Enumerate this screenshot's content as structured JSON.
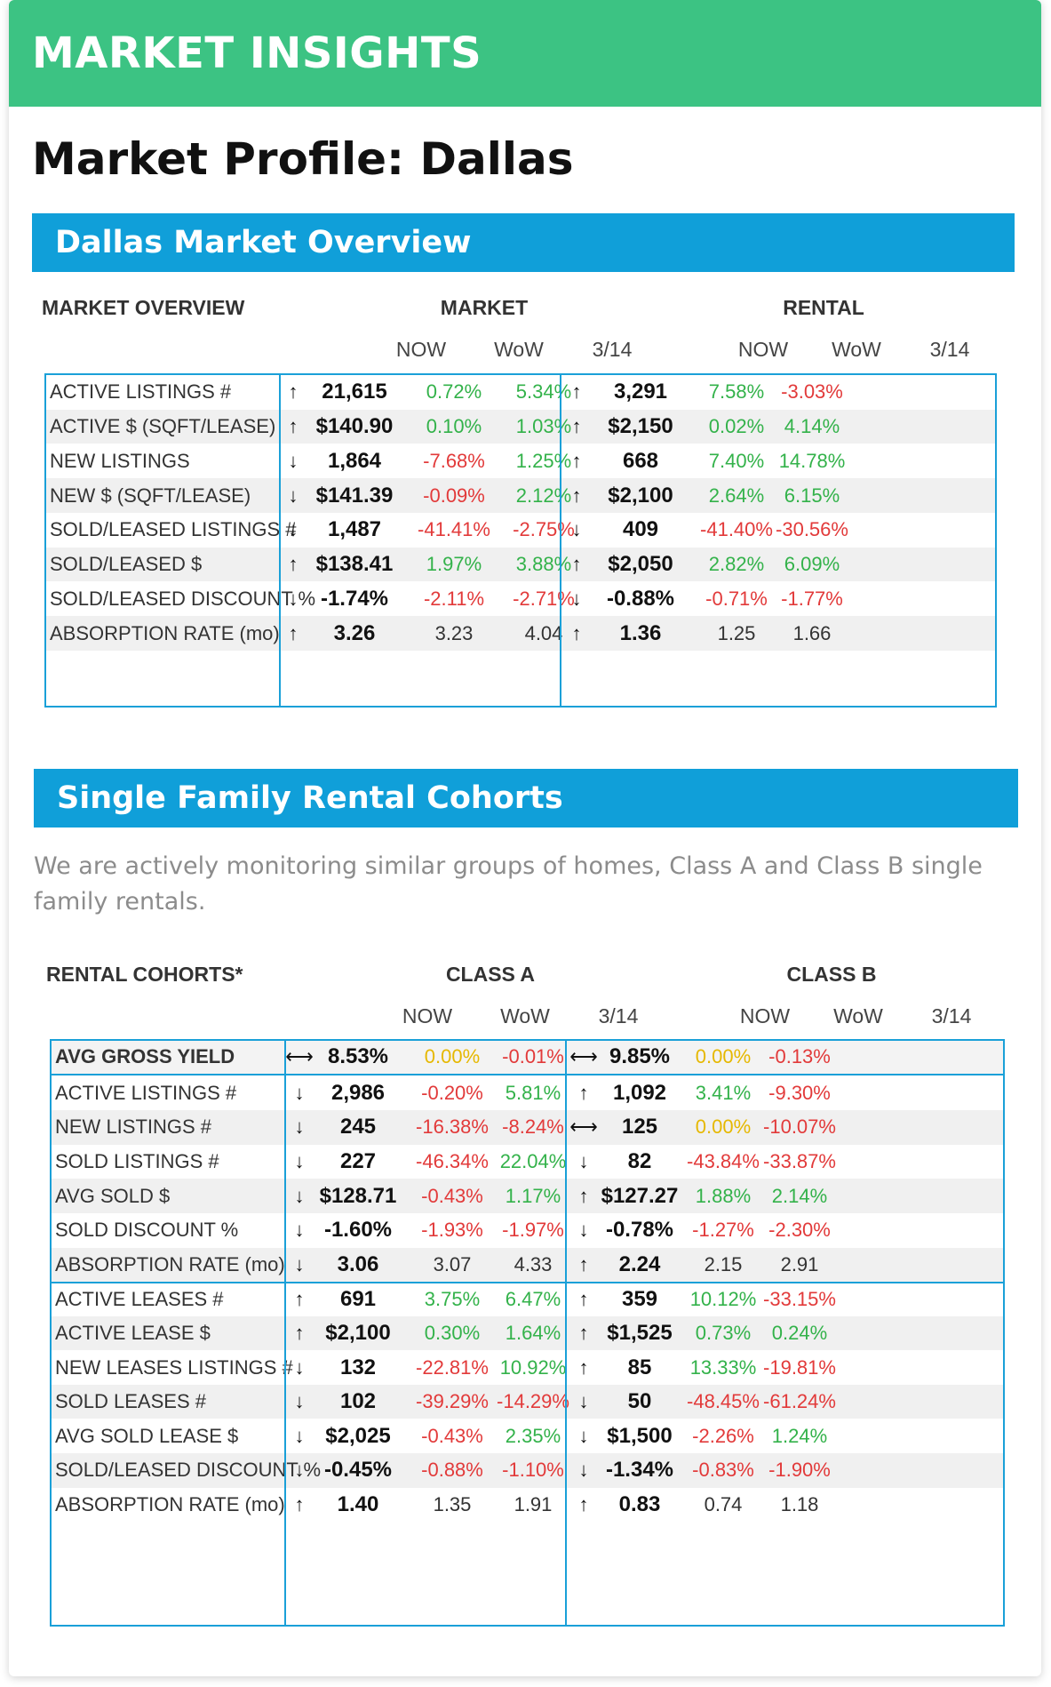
{
  "header": {
    "title": "MARKET INSIGHTS"
  },
  "page_title": "Market Profile: Dallas",
  "overview": {
    "banner": "Dallas Market Overview",
    "heading": "MARKET OVERVIEW",
    "group_a": "MARKET",
    "group_b": "RENTAL",
    "sub_now": "NOW",
    "sub_wow": "WoW",
    "sub_date": "3/14",
    "rows": [
      {
        "label": "ACTIVE LISTINGS #",
        "a_arrow": "↑",
        "a_now": "21,615",
        "a_wow": "0.72%",
        "a_d": "5.34%",
        "b_arrow": "↑",
        "b_now": "3,291",
        "b_wow": "7.58%",
        "b_d": "-3.03%"
      },
      {
        "label": "ACTIVE $ (SQFT/LEASE)",
        "a_arrow": "↑",
        "a_now": "$140.90",
        "a_wow": "0.10%",
        "a_d": "1.03%",
        "b_arrow": "↑",
        "b_now": "$2,150",
        "b_wow": "0.02%",
        "b_d": "4.14%"
      },
      {
        "label": "NEW LISTINGS",
        "a_arrow": "↓",
        "a_now": "1,864",
        "a_wow": "-7.68%",
        "a_d": "1.25%",
        "b_arrow": "↑",
        "b_now": "668",
        "b_wow": "7.40%",
        "b_d": "14.78%"
      },
      {
        "label": "NEW $ (SQFT/LEASE)",
        "a_arrow": "↓",
        "a_now": "$141.39",
        "a_wow": "-0.09%",
        "a_d": "2.12%",
        "b_arrow": "↑",
        "b_now": "$2,100",
        "b_wow": "2.64%",
        "b_d": "6.15%"
      },
      {
        "label": "SOLD/LEASED LISTINGS #",
        "a_arrow": "↓",
        "a_now": "1,487",
        "a_wow": "-41.41%",
        "a_d": "-2.75%",
        "b_arrow": "↓",
        "b_now": "409",
        "b_wow": "-41.40%",
        "b_d": "-30.56%"
      },
      {
        "label": "SOLD/LEASED $",
        "a_arrow": "↑",
        "a_now": "$138.41",
        "a_wow": "1.97%",
        "a_d": "3.88%",
        "b_arrow": "↑",
        "b_now": "$2,050",
        "b_wow": "2.82%",
        "b_d": "6.09%"
      },
      {
        "label": "SOLD/LEASED DISCOUNT %",
        "a_arrow": "↓",
        "a_now": "-1.74%",
        "a_wow": "-2.11%",
        "a_d": "-2.71%",
        "b_arrow": "↓",
        "b_now": "-0.88%",
        "b_wow": "-0.71%",
        "b_d": "-1.77%"
      },
      {
        "label": "ABSORPTION RATE (mo)",
        "a_arrow": "↑",
        "a_now": "3.26",
        "a_wow": "3.23",
        "a_d": "4.04",
        "b_arrow": "↑",
        "b_now": "1.36",
        "b_wow": "1.25",
        "b_d": "1.66"
      }
    ]
  },
  "cohorts": {
    "banner": "Single Family Rental Cohorts",
    "description": "We are actively monitoring similar groups of homes, Class A and Class B single family rentals.",
    "heading": "RENTAL COHORTS*",
    "group_a": "CLASS A",
    "group_b": "CLASS B",
    "sub_now": "NOW",
    "sub_wow": "WoW",
    "sub_date": "3/14",
    "rows": [
      {
        "label": "AVG GROSS YIELD",
        "a_arrow": "⟷",
        "a_now": "8.53%",
        "a_wow": "0.00%",
        "a_d": "-0.01%",
        "b_arrow": "⟷",
        "b_now": "9.85%",
        "b_wow": "0.00%",
        "b_d": "-0.13%"
      },
      {
        "label": "ACTIVE LISTINGS #",
        "a_arrow": "↓",
        "a_now": "2,986",
        "a_wow": "-0.20%",
        "a_d": "5.81%",
        "b_arrow": "↑",
        "b_now": "1,092",
        "b_wow": "3.41%",
        "b_d": "-9.30%"
      },
      {
        "label": "NEW LISTINGS #",
        "a_arrow": "↓",
        "a_now": "245",
        "a_wow": "-16.38%",
        "a_d": "-8.24%",
        "b_arrow": "⟷",
        "b_now": "125",
        "b_wow": "0.00%",
        "b_d": "-10.07%"
      },
      {
        "label": "SOLD LISTINGS #",
        "a_arrow": "↓",
        "a_now": "227",
        "a_wow": "-46.34%",
        "a_d": "22.04%",
        "b_arrow": "↓",
        "b_now": "82",
        "b_wow": "-43.84%",
        "b_d": "-33.87%"
      },
      {
        "label": "AVG SOLD $",
        "a_arrow": "↓",
        "a_now": "$128.71",
        "a_wow": "-0.43%",
        "a_d": "1.17%",
        "b_arrow": "↑",
        "b_now": "$127.27",
        "b_wow": "1.88%",
        "b_d": "2.14%"
      },
      {
        "label": "SOLD DISCOUNT %",
        "a_arrow": "↓",
        "a_now": "-1.60%",
        "a_wow": "-1.93%",
        "a_d": "-1.97%",
        "b_arrow": "↓",
        "b_now": "-0.78%",
        "b_wow": "-1.27%",
        "b_d": "-2.30%"
      },
      {
        "label": "ABSORPTION RATE (mo)",
        "a_arrow": "↓",
        "a_now": "3.06",
        "a_wow": "3.07",
        "a_d": "4.33",
        "b_arrow": "↑",
        "b_now": "2.24",
        "b_wow": "2.15",
        "b_d": "2.91"
      },
      {
        "label": "ACTIVE LEASES #",
        "a_arrow": "↑",
        "a_now": "691",
        "a_wow": "3.75%",
        "a_d": "6.47%",
        "b_arrow": "↑",
        "b_now": "359",
        "b_wow": "10.12%",
        "b_d": "-33.15%"
      },
      {
        "label": "ACTIVE LEASE $",
        "a_arrow": "↑",
        "a_now": "$2,100",
        "a_wow": "0.30%",
        "a_d": "1.64%",
        "b_arrow": "↑",
        "b_now": "$1,525",
        "b_wow": "0.73%",
        "b_d": "0.24%"
      },
      {
        "label": "NEW LEASES LISTINGS #",
        "a_arrow": "↓",
        "a_now": "132",
        "a_wow": "-22.81%",
        "a_d": "10.92%",
        "b_arrow": "↑",
        "b_now": "85",
        "b_wow": "13.33%",
        "b_d": "-19.81%"
      },
      {
        "label": "SOLD LEASES #",
        "a_arrow": "↓",
        "a_now": "102",
        "a_wow": "-39.29%",
        "a_d": "-14.29%",
        "b_arrow": "↓",
        "b_now": "50",
        "b_wow": "-48.45%",
        "b_d": "-61.24%"
      },
      {
        "label": "AVG SOLD LEASE $",
        "a_arrow": "↓",
        "a_now": "$2,025",
        "a_wow": "-0.43%",
        "a_d": "2.35%",
        "b_arrow": "↓",
        "b_now": "$1,500",
        "b_wow": "-2.26%",
        "b_d": "1.24%"
      },
      {
        "label": "SOLD/LEASED DISCOUNT %",
        "a_arrow": "↓",
        "a_now": "-0.45%",
        "a_wow": "-0.88%",
        "a_d": "-1.10%",
        "b_arrow": "↓",
        "b_now": "-1.34%",
        "b_wow": "-0.83%",
        "b_d": "-1.90%"
      },
      {
        "label": "ABSORPTION RATE (mo)",
        "a_arrow": "↑",
        "a_now": "1.40",
        "a_wow": "1.35",
        "a_d": "1.91",
        "b_arrow": "↑",
        "b_now": "0.83",
        "b_wow": "0.74",
        "b_d": "1.18"
      }
    ]
  },
  "colors": {
    "header": "#3cc383",
    "banner": "#109fd9",
    "positive": "#33b24a",
    "negative": "#e23a3a",
    "neutral": "#e6b800"
  }
}
